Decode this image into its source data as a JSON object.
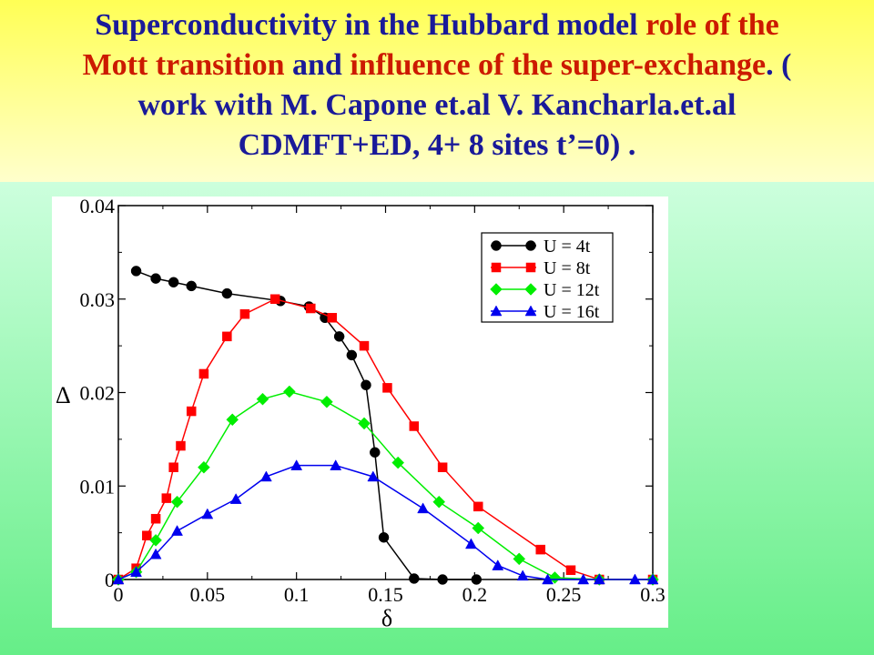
{
  "title": {
    "segments": [
      {
        "text": "Superconductivity in the Hubbard model ",
        "color": "blue"
      },
      {
        "text": "role of the",
        "color": "red"
      },
      {
        "text": "\n",
        "color": "blue"
      },
      {
        "text": "Mott transition ",
        "color": "red"
      },
      {
        "text": "and ",
        "color": "blue"
      },
      {
        "text": "influence of the super-exchange",
        "color": "red"
      },
      {
        "text": ". (",
        "color": "blue"
      },
      {
        "text": "\n",
        "color": "blue"
      },
      {
        "text": "work with M. Capone et.al V. Kancharla.et.al",
        "color": "blue"
      },
      {
        "text": "\n",
        "color": "blue"
      },
      {
        "text": "CDMFT+ED, 4+ 8 sites  t’=0) .",
        "color": "blue"
      }
    ]
  },
  "chart_data": {
    "type": "line",
    "xlabel": "δ",
    "ylabel": "Δ",
    "xlim": [
      0,
      0.3
    ],
    "ylim": [
      0,
      0.04
    ],
    "xticks": [
      "0",
      "0.05",
      "0.1",
      "0.15",
      "0.2",
      "0.25",
      "0.3"
    ],
    "yticks": [
      "0",
      "0.01",
      "0.02",
      "0.03",
      "0.04"
    ],
    "legend_position": "top-right",
    "grid": false,
    "series": [
      {
        "name": "U = 4t",
        "color": "#000000",
        "marker": "circle",
        "points": [
          [
            0.01,
            0.033
          ],
          [
            0.021,
            0.0322
          ],
          [
            0.031,
            0.0318
          ],
          [
            0.041,
            0.0314
          ],
          [
            0.061,
            0.0306
          ],
          [
            0.091,
            0.0298
          ],
          [
            0.107,
            0.0292
          ],
          [
            0.116,
            0.028
          ],
          [
            0.124,
            0.026
          ],
          [
            0.131,
            0.024
          ],
          [
            0.139,
            0.0208
          ],
          [
            0.144,
            0.0136
          ],
          [
            0.149,
            0.0045
          ],
          [
            0.166,
            0.0001
          ],
          [
            0.182,
            0.0
          ],
          [
            0.201,
            0.0
          ]
        ]
      },
      {
        "name": "U = 8t",
        "color": "#ff0000",
        "marker": "square",
        "points": [
          [
            0.0,
            0.0
          ],
          [
            0.01,
            0.0012
          ],
          [
            0.016,
            0.0047
          ],
          [
            0.021,
            0.0065
          ],
          [
            0.027,
            0.0087
          ],
          [
            0.031,
            0.012
          ],
          [
            0.035,
            0.0143
          ],
          [
            0.041,
            0.018
          ],
          [
            0.048,
            0.022
          ],
          [
            0.061,
            0.026
          ],
          [
            0.071,
            0.0284
          ],
          [
            0.088,
            0.03
          ],
          [
            0.108,
            0.029
          ],
          [
            0.12,
            0.028
          ],
          [
            0.138,
            0.025
          ],
          [
            0.151,
            0.0205
          ],
          [
            0.166,
            0.0164
          ],
          [
            0.182,
            0.012
          ],
          [
            0.202,
            0.0078
          ],
          [
            0.237,
            0.0032
          ],
          [
            0.254,
            0.001
          ],
          [
            0.27,
            0.0
          ],
          [
            0.3,
            0.0
          ]
        ]
      },
      {
        "name": "U = 12t",
        "color": "#00ee00",
        "marker": "diamond",
        "points": [
          [
            0.0,
            0.0
          ],
          [
            0.01,
            0.0008
          ],
          [
            0.021,
            0.0042
          ],
          [
            0.033,
            0.0083
          ],
          [
            0.048,
            0.012
          ],
          [
            0.064,
            0.0171
          ],
          [
            0.081,
            0.0193
          ],
          [
            0.096,
            0.0201
          ],
          [
            0.117,
            0.019
          ],
          [
            0.138,
            0.0167
          ],
          [
            0.157,
            0.0125
          ],
          [
            0.18,
            0.0083
          ],
          [
            0.202,
            0.0055
          ],
          [
            0.225,
            0.0022
          ],
          [
            0.245,
            0.0002
          ],
          [
            0.27,
            0.0
          ],
          [
            0.3,
            0.0
          ]
        ]
      },
      {
        "name": "U = 16t",
        "color": "#0000ee",
        "marker": "triangle",
        "points": [
          [
            0.0,
            0.0
          ],
          [
            0.01,
            0.0008
          ],
          [
            0.021,
            0.0027
          ],
          [
            0.033,
            0.0052
          ],
          [
            0.05,
            0.007
          ],
          [
            0.066,
            0.0086
          ],
          [
            0.083,
            0.011
          ],
          [
            0.1,
            0.0122
          ],
          [
            0.122,
            0.0122
          ],
          [
            0.143,
            0.011
          ],
          [
            0.171,
            0.0076
          ],
          [
            0.198,
            0.0038
          ],
          [
            0.213,
            0.0015
          ],
          [
            0.227,
            0.0004
          ],
          [
            0.241,
            0.0
          ],
          [
            0.261,
            0.0
          ],
          [
            0.27,
            0.0
          ],
          [
            0.29,
            0.0
          ],
          [
            0.3,
            0.0
          ]
        ]
      }
    ]
  }
}
